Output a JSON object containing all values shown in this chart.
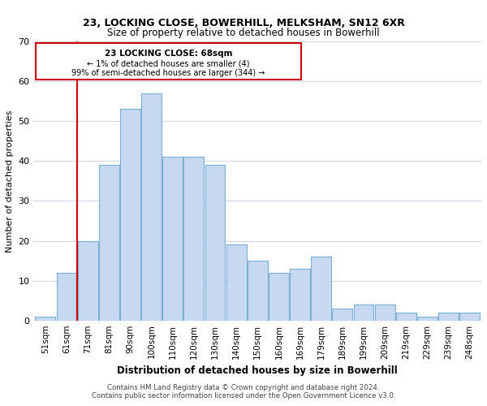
{
  "title1": "23, LOCKING CLOSE, BOWERHILL, MELKSHAM, SN12 6XR",
  "title2": "Size of property relative to detached houses in Bowerhill",
  "xlabel": "Distribution of detached houses by size in Bowerhill",
  "ylabel": "Number of detached properties",
  "bar_labels": [
    "51sqm",
    "61sqm",
    "71sqm",
    "81sqm",
    "90sqm",
    "100sqm",
    "110sqm",
    "120sqm",
    "130sqm",
    "140sqm",
    "150sqm",
    "160sqm",
    "169sqm",
    "179sqm",
    "189sqm",
    "199sqm",
    "209sqm",
    "219sqm",
    "229sqm",
    "239sqm",
    "248sqm"
  ],
  "bar_values": [
    1,
    12,
    20,
    39,
    53,
    57,
    41,
    41,
    39,
    19,
    15,
    12,
    13,
    16,
    3,
    4,
    4,
    2,
    1,
    2,
    2
  ],
  "bar_color": "#c6d9f0",
  "bar_edge_color": "#7bafd4",
  "vline_color": "#cc0000",
  "ylim": [
    0,
    70
  ],
  "yticks": [
    0,
    10,
    20,
    30,
    40,
    50,
    60,
    70
  ],
  "annotation_title": "23 LOCKING CLOSE: 68sqm",
  "annotation_line1": "← 1% of detached houses are smaller (4)",
  "annotation_line2": "99% of semi-detached houses are larger (344) →",
  "annotation_box_color": "#ffffff",
  "annotation_border_color": "#cc0000",
  "footer1": "Contains HM Land Registry data © Crown copyright and database right 2024.",
  "footer2": "Contains public sector information licensed under the Open Government Licence v3.0.",
  "bg_color": "#ffffff",
  "grid_color": "#d0d8e8"
}
